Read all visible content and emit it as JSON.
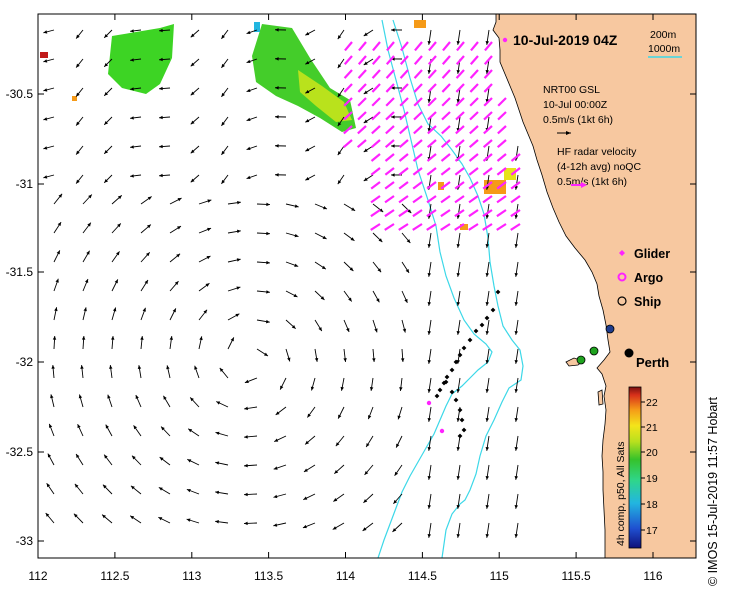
{
  "title": "10-Jul-2019 04Z",
  "scale_bar": {
    "label_200m": "200m",
    "label_1000m": "1000m"
  },
  "current_legend": {
    "line1": "NRT00 GSL",
    "line2": "10-Jul 00:00Z",
    "line3": "0.5m/s (1kt 6h)"
  },
  "radar_legend": {
    "line1": "HF radar velocity",
    "line2": "(4-12h avg) noQC",
    "line3": "0.5m/s (1kt 6h)"
  },
  "symbol_legend": {
    "glider": "Glider",
    "argo": "Argo",
    "ship": "Ship"
  },
  "city_label": "Perth",
  "colorbar": {
    "ticks": [
      "22",
      "21",
      "20",
      "19",
      "18",
      "17"
    ],
    "label": "4h comp, p50, All Sats"
  },
  "credit": "© IMOS 15-Jul-2019 11:57 Hobart",
  "axes": {
    "x_ticks": [
      "112",
      "112.5",
      "113",
      "113.5",
      "114",
      "114.5",
      "115",
      "115.5",
      "116"
    ],
    "y_ticks": [
      "-30.5",
      "-31",
      "-31.5",
      "-32",
      "-32.5",
      "-33"
    ]
  },
  "colors": {
    "land": "#f7c8a0",
    "isobath": "#3cd8e8",
    "radar_vectors": "#ff22ff",
    "ship_black": "#000000",
    "ship_green": "#1fa31f",
    "ship_navy": "#1f3c8c"
  }
}
